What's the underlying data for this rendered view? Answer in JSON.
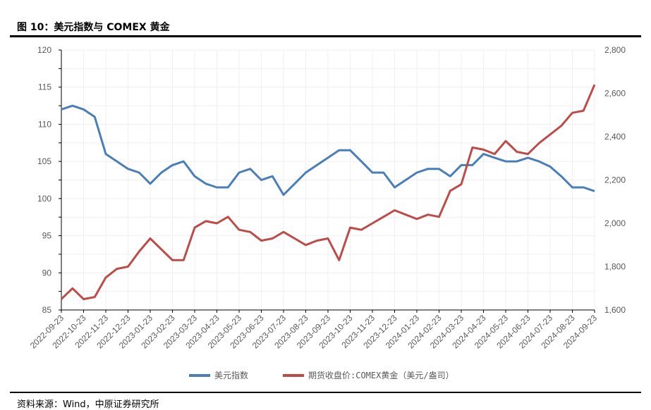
{
  "header": {
    "title": "图 10：美元指数与 COMEX 黄金"
  },
  "footer": {
    "source": "资料来源：Wind，中原证券研究所"
  },
  "chart_data": {
    "type": "line",
    "title": "美元指数与 COMEX 黄金",
    "x": [
      "2022-09-23",
      "2022-10-08",
      "2022-10-23",
      "2022-11-08",
      "2022-11-23",
      "2022-12-08",
      "2022-12-23",
      "2023-01-08",
      "2023-01-23",
      "2023-02-08",
      "2023-02-23",
      "2023-03-08",
      "2023-03-23",
      "2023-04-08",
      "2023-04-23",
      "2023-05-08",
      "2023-05-23",
      "2023-06-08",
      "2023-06-23",
      "2023-07-08",
      "2023-07-23",
      "2023-08-08",
      "2023-08-23",
      "2023-09-08",
      "2023-09-23",
      "2023-10-08",
      "2023-10-23",
      "2023-11-08",
      "2023-11-23",
      "2023-12-08",
      "2023-12-23",
      "2024-01-08",
      "2024-01-23",
      "2024-02-08",
      "2024-02-23",
      "2024-03-08",
      "2024-03-23",
      "2024-04-08",
      "2024-04-23",
      "2024-05-08",
      "2024-05-23",
      "2024-06-08",
      "2024-06-23",
      "2024-07-08",
      "2024-07-23",
      "2024-08-08",
      "2024-08-23",
      "2024-09-08",
      "2024-09-23"
    ],
    "x_tick_labels": [
      "2022-09-23",
      "2022-10-23",
      "2022-11-23",
      "2022-12-23",
      "2023-01-23",
      "2023-02-23",
      "2023-03-23",
      "2023-04-23",
      "2023-05-23",
      "2023-06-23",
      "2023-07-23",
      "2023-08-23",
      "2023-09-23",
      "2023-10-23",
      "2023-11-23",
      "2023-12-23",
      "2024-01-23",
      "2024-02-23",
      "2024-03-23",
      "2024-04-23",
      "2024-05-23",
      "2024-06-23",
      "2024-07-23",
      "2024-08-23",
      "2024-09-23"
    ],
    "y_left": {
      "ylim": [
        85,
        120
      ],
      "ticks": [
        "85",
        "90",
        "95",
        "100",
        "105",
        "110",
        "115",
        "120"
      ]
    },
    "y_right": {
      "ylim": [
        1600,
        2800
      ],
      "ticks": [
        "1,600",
        "1,800",
        "2,000",
        "2,200",
        "2,400",
        "2,600",
        "2,800"
      ]
    },
    "grid": true,
    "legend_position": "bottom",
    "series": [
      {
        "name": "美元指数",
        "axis": "left",
        "color": "#4a7ebb",
        "values": [
          112,
          112.5,
          112,
          111,
          106,
          105,
          104,
          103.5,
          102,
          103.5,
          104.5,
          105,
          103,
          102,
          101.5,
          101.5,
          103.5,
          104,
          102.5,
          103,
          100.5,
          102,
          103.5,
          104.5,
          105.5,
          106.5,
          106.5,
          105,
          103.5,
          103.5,
          101.5,
          102.5,
          103.5,
          104,
          104,
          103,
          104.5,
          104.5,
          106,
          105.5,
          105,
          105,
          105.5,
          105,
          104.3,
          103,
          101.5,
          101.5,
          101
        ]
      },
      {
        "name": "期货收盘价:COMEX黄金（美元/盎司）",
        "axis": "right",
        "color": "#be4b48",
        "values": [
          1650,
          1700,
          1650,
          1660,
          1750,
          1790,
          1800,
          1870,
          1930,
          1880,
          1830,
          1830,
          1980,
          2010,
          2000,
          2030,
          1970,
          1960,
          1920,
          1930,
          1960,
          1930,
          1900,
          1920,
          1930,
          1830,
          1980,
          1970,
          2000,
          2030,
          2060,
          2040,
          2020,
          2040,
          2030,
          2150,
          2180,
          2350,
          2340,
          2320,
          2380,
          2330,
          2320,
          2370,
          2410,
          2450,
          2510,
          2520,
          2640
        ]
      }
    ]
  }
}
